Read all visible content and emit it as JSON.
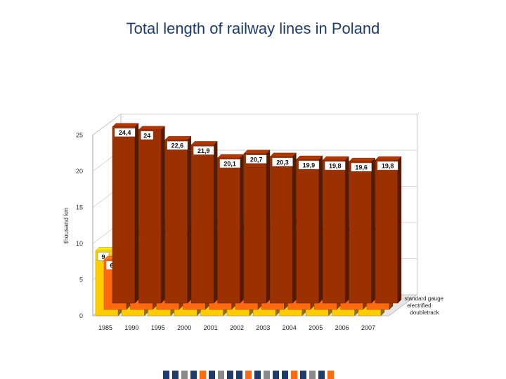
{
  "page": {
    "title": "Total length of railway lines in Poland"
  },
  "chart_data": {
    "type": "bar",
    "title": "Total length of railway lines in Poland",
    "ylabel": "thousand km",
    "xlabel": "",
    "ylim": [
      0,
      25
    ],
    "yticks": [
      0,
      5,
      10,
      15,
      20,
      25
    ],
    "categories": [
      "1985",
      "1990",
      "1995",
      "2000",
      "2001",
      "2002",
      "2003",
      "2004",
      "2005",
      "2006",
      "2007"
    ],
    "series": [
      {
        "name": "standard gauge",
        "color": "#9b3100",
        "values": [
          24.4,
          24,
          22.6,
          21.9,
          20.1,
          20.7,
          20.3,
          19.9,
          19.8,
          19.6,
          19.8
        ],
        "labels": [
          "24,4",
          "24",
          "22,6",
          "21,9",
          "20,1",
          "20,7",
          "20,3",
          "19,9",
          "19,8",
          "19,6",
          "19,8"
        ]
      },
      {
        "name": "electrified",
        "color": "#ff6a10",
        "values": [
          6.9,
          11.4,
          11.6,
          11.6,
          12,
          12.2,
          12.2,
          12,
          11.9,
          11.9,
          11.9
        ],
        "labels": [
          "6,9",
          "11,4",
          "11,6",
          "11,6",
          "12",
          "12,2",
          "12,2",
          "12",
          "11,9",
          "11,9",
          "11,9"
        ]
      },
      {
        "name": "doubletrack",
        "color": "#ffcc00",
        "values": [
          9,
          8.8,
          8.9,
          8.8,
          8.8,
          8.9,
          8.8,
          8.8,
          8.7,
          8.7,
          8.7
        ],
        "labels": [
          "9",
          "8,8",
          "8,9",
          "8,8",
          "8,8",
          "8,9",
          "8,8",
          "8,8",
          "8,7",
          "8,7",
          "8,7"
        ]
      }
    ],
    "legend_labels": [
      "standard gauge",
      "electrified",
      "doubletrack"
    ],
    "legend_position": "bottom-right",
    "grid": true
  },
  "footer": {
    "strip_colors": [
      "#1f3b6b",
      "#1f3b6b",
      "#8a8a8a",
      "#1f3b6b",
      "#ff6a10",
      "#1f3b6b",
      "#8a8a8a",
      "#1f3b6b",
      "#1f3b6b",
      "#ff6a10",
      "#1f3b6b",
      "#8a8a8a",
      "#1f3b6b",
      "#1f3b6b",
      "#ff6a10",
      "#1f3b6b",
      "#8a8a8a",
      "#1f3b6b",
      "#ff6a10"
    ]
  }
}
